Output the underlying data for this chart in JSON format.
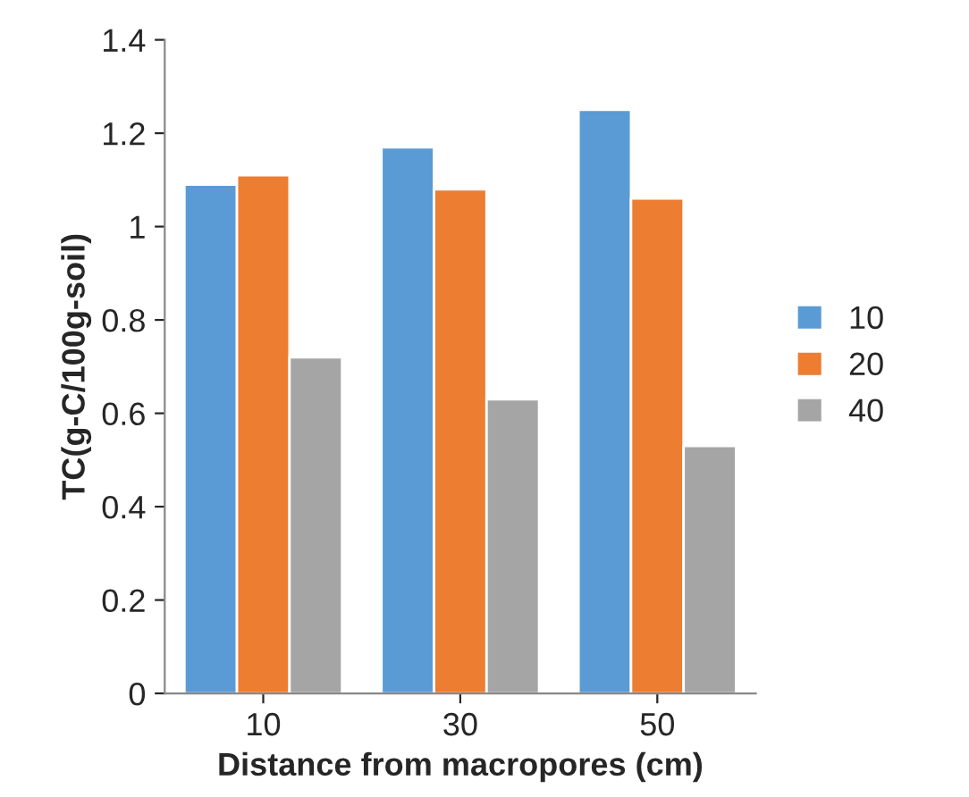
{
  "chart_data": {
    "type": "bar",
    "xlabel": "Distance from macropores (cm)",
    "ylabel": "TC(g-C/100g-soil)",
    "categories": [
      "10",
      "30",
      "50"
    ],
    "series": [
      {
        "name": "10",
        "color": "#5b9bd5",
        "values": [
          1.09,
          1.17,
          1.25
        ]
      },
      {
        "name": "20",
        "color": "#ed7d31",
        "values": [
          1.11,
          1.08,
          1.06
        ]
      },
      {
        "name": "40",
        "color": "#a5a5a5",
        "values": [
          0.72,
          0.63,
          0.53
        ]
      }
    ],
    "ylim": [
      0,
      1.4
    ],
    "yticks": [
      0,
      0.2,
      0.4,
      0.6,
      0.8,
      1,
      1.2,
      1.4
    ],
    "grid": false,
    "legend": "right"
  }
}
